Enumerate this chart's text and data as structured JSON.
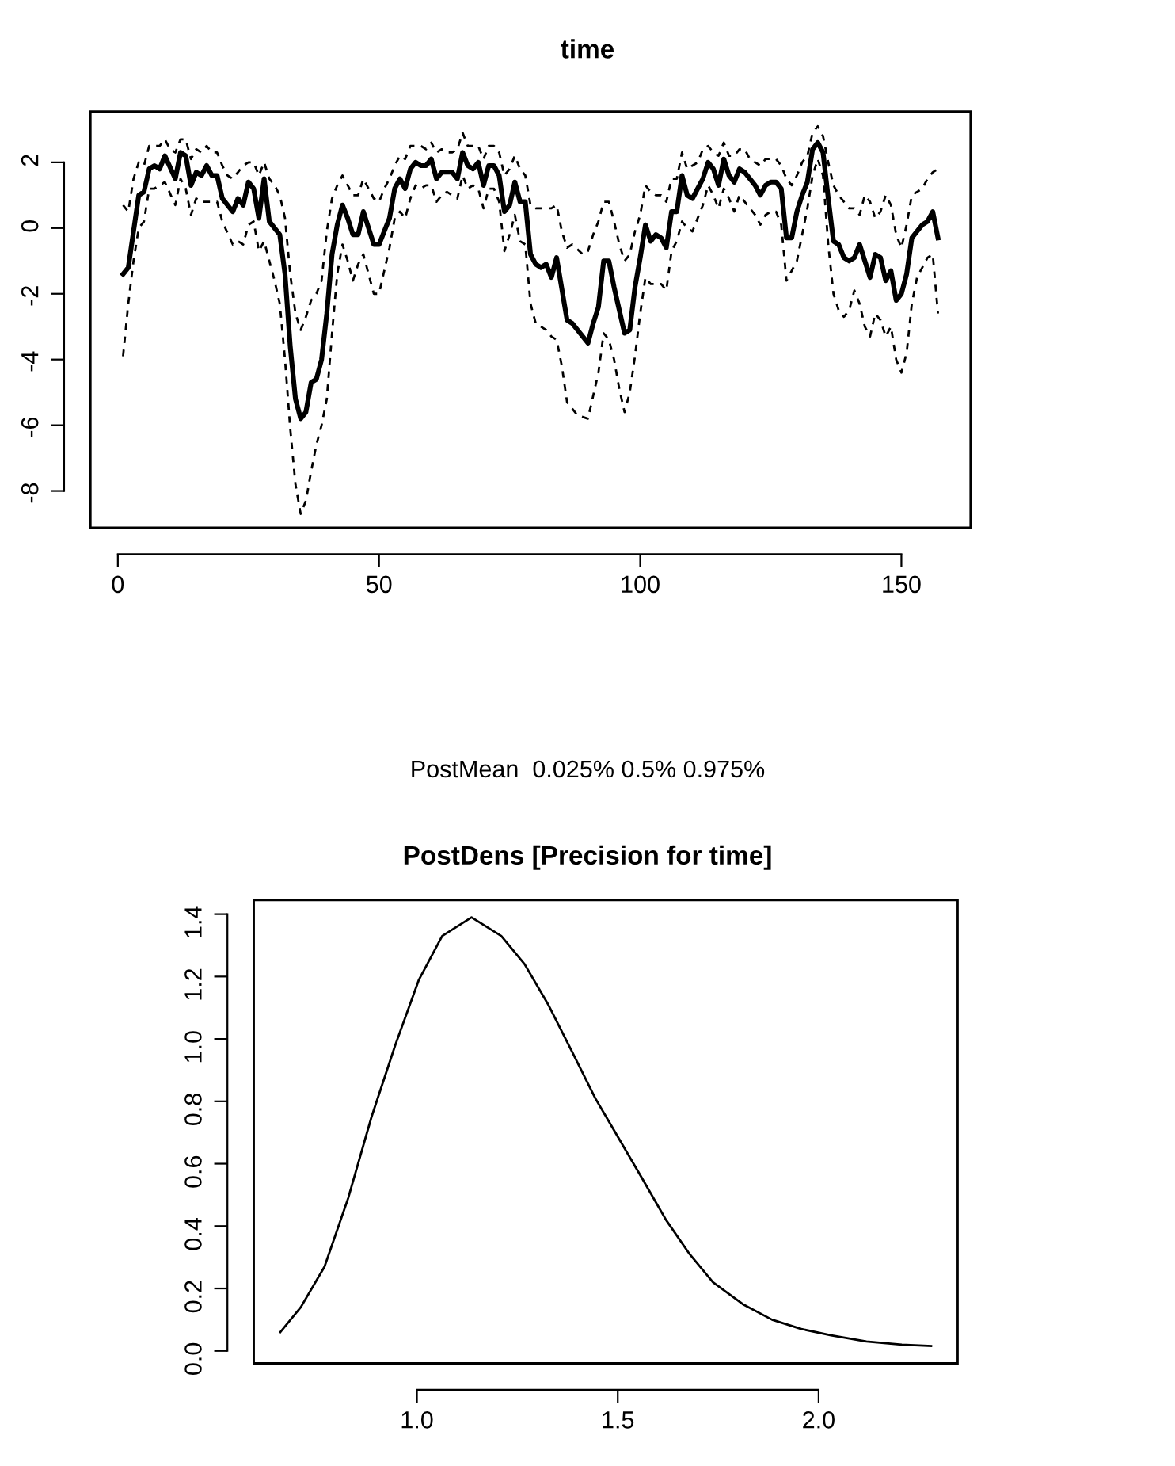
{
  "chart_data": [
    {
      "type": "line",
      "title": "time",
      "annotations": [
        "PostMean  0.025% 0.5% 0.975%"
      ],
      "xlim": [
        -5.24,
        163.24
      ],
      "ylim": [
        -9.12,
        3.55
      ],
      "xticks": [
        0,
        50,
        100,
        150
      ],
      "yticks": [
        -8,
        -6,
        -4,
        -2,
        0,
        2
      ],
      "grid": false,
      "legend": false,
      "series": [
        {
          "color": "#000000",
          "line_style": "solid",
          "x": [
            1,
            2,
            4,
            5,
            6,
            7,
            8,
            9,
            11,
            12,
            13,
            14,
            15,
            16,
            17,
            18,
            19,
            20,
            22,
            23,
            24,
            25,
            26,
            27,
            28,
            29,
            31,
            32,
            33,
            34,
            35,
            36,
            37,
            38,
            39,
            40,
            41,
            42,
            43,
            44,
            45,
            46,
            47,
            48,
            49,
            50,
            51,
            52,
            53,
            54,
            55,
            56,
            57,
            58,
            59,
            60,
            61,
            62,
            63,
            64,
            65,
            66,
            67,
            68,
            69,
            70,
            71,
            72,
            73,
            74,
            75,
            76,
            77,
            78,
            79,
            80,
            81,
            82,
            83,
            84,
            86,
            87,
            88,
            89,
            90,
            91,
            92,
            93,
            94,
            95,
            96,
            97,
            98,
            99,
            100,
            101,
            102,
            103,
            104,
            105,
            106,
            107,
            108,
            109,
            110,
            111,
            112,
            113,
            114,
            115,
            116,
            117,
            118,
            119,
            120,
            121,
            122,
            123,
            124,
            125,
            126,
            127,
            128,
            129,
            130,
            131,
            132,
            133,
            134,
            135,
            136,
            137,
            138,
            139,
            140,
            141,
            142,
            143,
            144,
            145,
            146,
            147,
            148,
            149,
            150,
            151,
            152,
            153,
            154,
            155,
            156,
            157
          ],
          "values": [
            -1.4,
            -1.2,
            1.0,
            1.1,
            1.8,
            1.9,
            1.8,
            2.2,
            1.5,
            2.3,
            2.2,
            1.3,
            1.7,
            1.6,
            1.9,
            1.6,
            1.6,
            0.9,
            0.5,
            0.9,
            0.7,
            1.4,
            1.2,
            0.3,
            1.5,
            0.2,
            -0.2,
            -1.4,
            -3.6,
            -5.2,
            -5.8,
            -5.6,
            -4.7,
            -4.6,
            -4.0,
            -2.6,
            -0.8,
            0.1,
            0.7,
            0.3,
            -0.2,
            -0.2,
            0.5,
            0.0,
            -0.5,
            -0.5,
            -0.1,
            0.3,
            1.2,
            1.5,
            1.2,
            1.8,
            2.0,
            1.9,
            1.9,
            2.1,
            1.5,
            1.7,
            1.7,
            1.7,
            1.5,
            2.3,
            1.9,
            1.8,
            2.0,
            1.3,
            1.9,
            1.9,
            1.6,
            0.5,
            0.7,
            1.4,
            0.8,
            0.8,
            -0.8,
            -1.1,
            -1.2,
            -1.1,
            -1.5,
            -0.9,
            -2.8,
            -2.9,
            -3.1,
            -3.3,
            -3.5,
            -2.9,
            -2.4,
            -1.0,
            -1.0,
            -1.8,
            -2.5,
            -3.2,
            -3.1,
            -1.8,
            -0.9,
            0.1,
            -0.4,
            -0.2,
            -0.3,
            -0.6,
            0.5,
            0.5,
            1.6,
            1.0,
            0.9,
            1.2,
            1.5,
            2.0,
            1.8,
            1.3,
            2.1,
            1.6,
            1.4,
            1.8,
            1.7,
            1.5,
            1.3,
            1.0,
            1.3,
            1.4,
            1.4,
            1.2,
            -0.3,
            -0.3,
            0.5,
            1.0,
            1.4,
            2.4,
            2.6,
            2.3,
            0.9,
            -0.4,
            -0.5,
            -0.9,
            -1.0,
            -0.9,
            -0.5,
            -1.0,
            -1.5,
            -0.8,
            -0.9,
            -1.6,
            -1.3,
            -2.2,
            -2.0,
            -1.4,
            -0.3,
            -0.1,
            0.1,
            0.2,
            0.5,
            -0.3
          ]
        },
        {
          "color": "#000000",
          "line_style": "dashed",
          "x": [
            1,
            2,
            3,
            4,
            5,
            6,
            7,
            9,
            11,
            12,
            13,
            14,
            15,
            16,
            17,
            18,
            19,
            20,
            22,
            23,
            24,
            25,
            26,
            27,
            28,
            29,
            30,
            31,
            32,
            33,
            34,
            35,
            36,
            37,
            38,
            39,
            40,
            41,
            42,
            43,
            44,
            45,
            46,
            47,
            48,
            49,
            50,
            51,
            52,
            53,
            54,
            55,
            56,
            57,
            58,
            59,
            60,
            61,
            62,
            63,
            64,
            65,
            66,
            67,
            68,
            69,
            70,
            71,
            72,
            73,
            74,
            75,
            76,
            77,
            78,
            79,
            80,
            82,
            83,
            84,
            85,
            86,
            88,
            90,
            92,
            93,
            94,
            95,
            96,
            97,
            98,
            99,
            100,
            101,
            102,
            103,
            104,
            105,
            106,
            107,
            108,
            109,
            110,
            111,
            112,
            113,
            114,
            115,
            116,
            117,
            118,
            119,
            120,
            121,
            122,
            123,
            124,
            125,
            126,
            127,
            128,
            130,
            132,
            133,
            134,
            135,
            136,
            137,
            138,
            139,
            140,
            141,
            142,
            143,
            144,
            145,
            146,
            147,
            148,
            149,
            150,
            151,
            152,
            153,
            154,
            155,
            156,
            157
          ],
          "values": [
            -3.9,
            -2.3,
            -1.0,
            0.0,
            0.2,
            1.2,
            1.2,
            1.4,
            0.7,
            1.5,
            1.2,
            0.4,
            0.9,
            0.8,
            0.8,
            0.8,
            0.8,
            0.2,
            -0.5,
            -0.4,
            -0.5,
            0.1,
            0.2,
            -0.7,
            -0.4,
            -1.0,
            -1.6,
            -2.3,
            -4.0,
            -6.1,
            -7.8,
            -8.7,
            -8.3,
            -7.4,
            -6.6,
            -6.0,
            -5.2,
            -3.2,
            -1.4,
            -0.5,
            -1.0,
            -1.6,
            -1.1,
            -0.8,
            -1.4,
            -2.0,
            -2.0,
            -1.3,
            -0.6,
            0.3,
            0.5,
            0.3,
            0.9,
            1.3,
            1.2,
            1.3,
            1.3,
            0.8,
            1.0,
            1.1,
            1.0,
            0.9,
            1.6,
            1.2,
            1.3,
            1.2,
            0.6,
            1.2,
            1.2,
            0.8,
            -0.7,
            -0.2,
            0.4,
            -0.4,
            -0.5,
            -2.3,
            -2.9,
            -3.1,
            -3.3,
            -3.4,
            -4.2,
            -5.3,
            -5.7,
            -5.8,
            -4.4,
            -3.2,
            -3.4,
            -4.0,
            -4.9,
            -5.6,
            -5.0,
            -3.9,
            -2.6,
            -1.5,
            -1.7,
            -1.7,
            -1.7,
            -1.9,
            -0.7,
            -0.4,
            0.2,
            0.0,
            -0.1,
            0.3,
            0.7,
            1.3,
            1.0,
            0.6,
            1.2,
            0.9,
            0.5,
            1.0,
            0.8,
            0.6,
            0.4,
            0.1,
            0.4,
            0.5,
            0.5,
            0.1,
            -1.6,
            -1.0,
            0.6,
            1.6,
            2.1,
            1.6,
            -0.5,
            -2.0,
            -2.5,
            -2.7,
            -2.5,
            -1.9,
            -2.3,
            -3.0,
            -3.3,
            -2.6,
            -2.8,
            -3.3,
            -3.0,
            -4.0,
            -4.4,
            -3.8,
            -2.3,
            -1.5,
            -1.2,
            -0.9,
            -0.8,
            -2.6
          ]
        },
        {
          "color": "#000000",
          "line_style": "dashed",
          "x": [
            1,
            2,
            3,
            4,
            5,
            6,
            7,
            8,
            9,
            10,
            11,
            12,
            13,
            14,
            15,
            16,
            17,
            18,
            19,
            20,
            21,
            22,
            23,
            24,
            25,
            26,
            27,
            28,
            29,
            30,
            31,
            32,
            33,
            34,
            35,
            36,
            37,
            38,
            39,
            40,
            41,
            42,
            43,
            44,
            45,
            46,
            47,
            48,
            49,
            50,
            51,
            52,
            53,
            54,
            55,
            56,
            57,
            58,
            59,
            60,
            61,
            62,
            63,
            64,
            65,
            66,
            67,
            68,
            69,
            70,
            71,
            72,
            73,
            74,
            75,
            76,
            77,
            78,
            79,
            80,
            82,
            83,
            84,
            85,
            86,
            87,
            89,
            90,
            91,
            92,
            93,
            94,
            95,
            96,
            97,
            98,
            99,
            100,
            101,
            102,
            103,
            104,
            105,
            106,
            107,
            108,
            109,
            110,
            111,
            112,
            113,
            114,
            115,
            116,
            117,
            118,
            119,
            120,
            121,
            122,
            123,
            124,
            125,
            126,
            127,
            128,
            129,
            130,
            131,
            132,
            133,
            134,
            135,
            136,
            137,
            138,
            139,
            140,
            141,
            142,
            143,
            144,
            145,
            146,
            147,
            148,
            149,
            150,
            151,
            152,
            153,
            154,
            155,
            156,
            157
          ],
          "values": [
            0.7,
            0.5,
            1.5,
            2.0,
            1.9,
            2.5,
            2.5,
            2.5,
            2.7,
            2.4,
            2.3,
            2.7,
            2.7,
            2.1,
            2.4,
            2.3,
            2.5,
            2.3,
            2.3,
            1.9,
            1.6,
            1.5,
            1.7,
            1.9,
            2.0,
            2.0,
            1.6,
            2.0,
            1.5,
            1.3,
            1.0,
            0.3,
            -1.4,
            -2.6,
            -3.1,
            -2.7,
            -2.2,
            -2.0,
            -1.6,
            -0.1,
            0.9,
            1.3,
            1.6,
            1.3,
            1.0,
            1.0,
            1.5,
            1.2,
            0.9,
            0.8,
            1.2,
            1.5,
            1.9,
            2.2,
            2.1,
            2.5,
            2.5,
            2.5,
            2.4,
            2.6,
            2.3,
            2.4,
            2.3,
            2.3,
            2.4,
            2.9,
            2.5,
            2.5,
            2.5,
            2.1,
            2.5,
            2.5,
            2.3,
            1.6,
            1.8,
            2.2,
            1.8,
            1.6,
            0.7,
            0.6,
            0.6,
            0.6,
            0.7,
            -0.1,
            -0.6,
            -0.5,
            -0.8,
            -0.7,
            -0.2,
            0.2,
            0.8,
            0.8,
            0.2,
            -0.5,
            -1.0,
            -0.8,
            -0.1,
            0.4,
            1.3,
            1.1,
            1.0,
            1.0,
            0.8,
            1.5,
            1.5,
            2.3,
            1.8,
            1.9,
            2.0,
            2.4,
            2.5,
            2.3,
            2.2,
            2.6,
            2.2,
            2.2,
            2.4,
            2.4,
            2.1,
            2.0,
            1.9,
            2.1,
            2.1,
            2.1,
            1.9,
            1.5,
            1.3,
            1.6,
            2.0,
            2.2,
            2.9,
            3.1,
            2.8,
            2.0,
            1.3,
            1.0,
            0.8,
            0.6,
            0.6,
            0.4,
            1.0,
            0.8,
            0.3,
            0.5,
            1.0,
            0.7,
            -0.2,
            -0.6,
            0.1,
            1.0,
            1.1,
            1.2,
            1.5,
            1.7,
            1.8
          ]
        }
      ]
    },
    {
      "type": "line",
      "title": "PostDens [Precision for time]",
      "xlim": [
        0.594,
        2.346
      ],
      "ylim": [
        -0.04,
        1.445
      ],
      "xticks": [
        {
          "value": 1,
          "label": "1.0"
        },
        1.5,
        {
          "value": 2,
          "label": "2.0"
        }
      ],
      "yticks": [
        {
          "value": 0,
          "label": "0.0"
        },
        0.2,
        0.4,
        0.6,
        0.8,
        {
          "value": 1,
          "label": "1.0"
        },
        1.2,
        1.4
      ],
      "grid": false,
      "legend": false,
      "series": [
        {
          "color": "#000000",
          "line_style": "solid",
          "x": [
            0.66,
            0.711,
            0.77,
            0.829,
            0.887,
            0.946,
            1.005,
            1.063,
            1.136,
            1.21,
            1.268,
            1.327,
            1.386,
            1.444,
            1.503,
            1.562,
            1.62,
            1.679,
            1.737,
            1.811,
            1.884,
            1.957,
            2.031,
            2.119,
            2.207,
            2.28
          ],
          "values": [
            0.06,
            0.14,
            0.27,
            0.49,
            0.75,
            0.98,
            1.19,
            1.33,
            1.39,
            1.33,
            1.24,
            1.11,
            0.96,
            0.81,
            0.68,
            0.55,
            0.42,
            0.31,
            0.22,
            0.15,
            0.1,
            0.07,
            0.05,
            0.03,
            0.02,
            0.016
          ]
        }
      ]
    }
  ]
}
